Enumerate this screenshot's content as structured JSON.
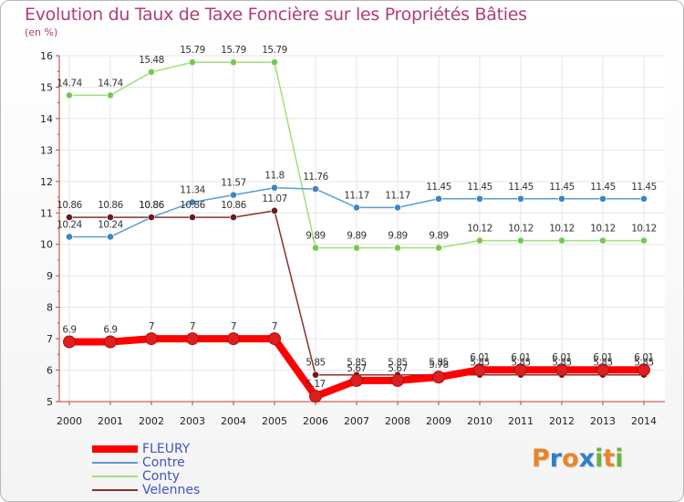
{
  "title": "Evolution du Taux de Taxe Foncière sur les Propriétés Bâties",
  "unit_label": "(en %)",
  "chart_data": {
    "type": "line",
    "title": "Evolution du Taux de Taxe Foncière sur les Propriétés Bâties",
    "ylabel": "(en %)",
    "xlabel": "",
    "ylim": [
      5,
      16
    ],
    "grid": true,
    "legend_position": "bottom-left",
    "categories": [
      "2000",
      "2001",
      "2002",
      "2003",
      "2004",
      "2005",
      "2006",
      "2007",
      "2008",
      "2009",
      "2010",
      "2011",
      "2012",
      "2013",
      "2014"
    ],
    "y_ticks": [
      "5",
      "6",
      "7",
      "8",
      "9",
      "10",
      "11",
      "12",
      "13",
      "14",
      "15",
      "16"
    ],
    "series": [
      {
        "name": "FLEURY",
        "color": "#ff0000",
        "point_color": "#dd1f1f",
        "values": [
          6.9,
          6.9,
          7,
          7,
          7,
          7,
          5.17,
          5.67,
          5.67,
          5.78,
          6.01,
          6.01,
          6.01,
          6.01,
          6.01
        ],
        "labels": [
          "6.9",
          "6.9",
          "7",
          "7",
          "7",
          "7",
          "5.17",
          "5.67",
          "5.67",
          "5.78",
          "6.01",
          "6.01",
          "6.01",
          "6.01",
          "6.01"
        ]
      },
      {
        "name": "Contre",
        "color": "#5c9bd1",
        "point_color": "#3d86c6",
        "values": [
          10.24,
          10.24,
          10.86,
          11.34,
          11.57,
          11.8,
          11.76,
          11.17,
          11.17,
          11.45,
          11.45,
          11.45,
          11.45,
          11.45,
          11.45
        ],
        "labels": [
          "10.24",
          "10.24",
          "10.86",
          "11.34",
          "11.57",
          "11.8",
          "11.76",
          "11.17",
          "11.17",
          "11.45",
          "11.45",
          "11.45",
          "11.45",
          "11.45",
          "11.45"
        ]
      },
      {
        "name": "Conty",
        "color": "#9ee07b",
        "point_color": "#78c850",
        "values": [
          14.74,
          14.74,
          15.48,
          15.79,
          15.79,
          15.79,
          9.89,
          9.89,
          9.89,
          9.89,
          10.12,
          10.12,
          10.12,
          10.12,
          10.12
        ],
        "labels": [
          "14.74",
          "14.74",
          "15.48",
          "15.79",
          "15.79",
          "15.79",
          "9.89",
          "9.89",
          "9.89",
          "9.89",
          "10.12",
          "10.12",
          "10.12",
          "10.12",
          "10.12"
        ]
      },
      {
        "name": "Velennes",
        "color": "#8b2f2f",
        "point_color": "#6b1b1b",
        "values": [
          10.86,
          10.86,
          10.86,
          10.86,
          10.86,
          11.07,
          5.85,
          5.85,
          5.85,
          5.85,
          5.85,
          5.85,
          5.85,
          5.85,
          5.85
        ],
        "labels": [
          "10.86",
          "10.86",
          "10.86",
          "10.86",
          "10.86",
          "11.07",
          "5.85",
          "5.85",
          "5.85",
          "5.85",
          "5.85",
          "5.85",
          "5.85",
          "5.85",
          "5.85"
        ]
      }
    ]
  },
  "legend": [
    {
      "name": "FLEURY",
      "color": "#ff0000"
    },
    {
      "name": "Contre",
      "color": "#5c9bd1"
    },
    {
      "name": "Conty",
      "color": "#9ee07b"
    },
    {
      "name": "Velennes",
      "color": "#8b2f2f"
    }
  ],
  "logo": {
    "letters": [
      "P",
      "r",
      "o",
      "x",
      "i",
      "t",
      "i"
    ],
    "colors": [
      "#e8862a",
      "#2f7fd0",
      "#e8862a",
      "#2f7fd0",
      "#6ab43c",
      "#e8862a",
      "#6ab43c"
    ]
  }
}
